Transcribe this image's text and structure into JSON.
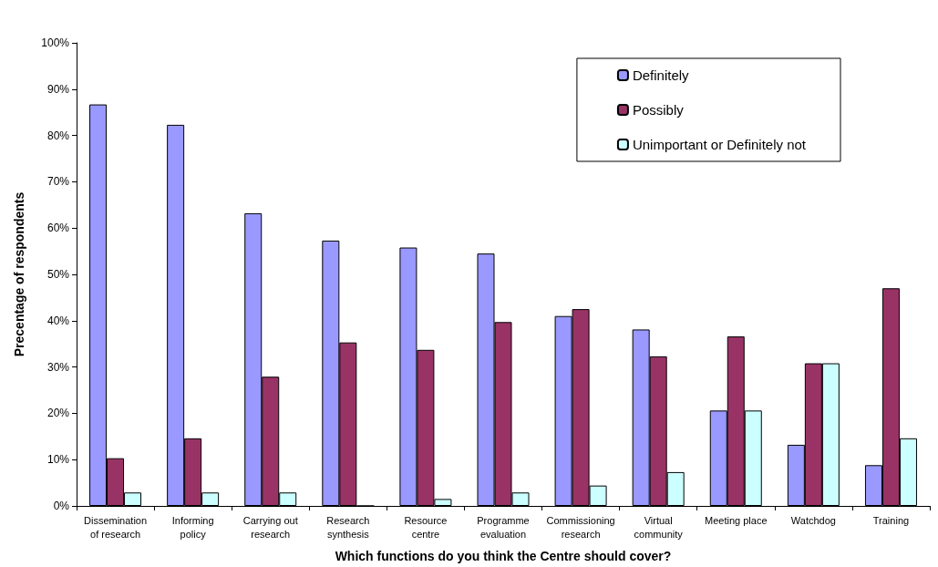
{
  "chart_data": {
    "type": "bar",
    "xlabel": "Which functions do you think the Centre should cover?",
    "ylabel": "Precentage of respondents",
    "categories": [
      "Dissemination\nof research",
      "Informing\npolicy",
      "Carrying out\nresearch",
      "Research\nsynthesis",
      "Resource\ncentre",
      "Programme\nevaluation",
      "Commissioning\nresearch",
      "Virtual\ncommunity",
      "Meeting place",
      "Watchdog",
      "Training"
    ],
    "series": [
      {
        "name": "Definitely",
        "color": "#9999ff",
        "values": [
          86.7,
          82.3,
          63.2,
          57.3,
          55.8,
          54.5,
          41.0,
          38.1,
          20.6,
          13.2,
          8.8
        ]
      },
      {
        "name": "Possibly",
        "color": "#993366",
        "values": [
          10.3,
          14.6,
          27.9,
          35.3,
          33.7,
          39.7,
          42.5,
          32.3,
          36.6,
          30.8,
          47.0
        ]
      },
      {
        "name": "Unimportant or Definitely not",
        "color": "#ccffff",
        "values": [
          2.9,
          2.9,
          2.9,
          0,
          1.5,
          2.9,
          4.4,
          7.3,
          20.6,
          30.8,
          14.6
        ]
      }
    ],
    "ylim": [
      0,
      100
    ],
    "yticks": [
      {
        "value": 0,
        "label": "0%"
      },
      {
        "value": 10,
        "label": "10%"
      },
      {
        "value": 20,
        "label": "20%"
      },
      {
        "value": 30,
        "label": "30%"
      },
      {
        "value": 40,
        "label": "40%"
      },
      {
        "value": 50,
        "label": "50%"
      },
      {
        "value": 60,
        "label": "60%"
      },
      {
        "value": 70,
        "label": "70%"
      },
      {
        "value": 80,
        "label": "80%"
      },
      {
        "value": 90,
        "label": "90%"
      },
      {
        "value": 100,
        "label": "100%"
      }
    ],
    "grid": false,
    "legend": "top right"
  }
}
